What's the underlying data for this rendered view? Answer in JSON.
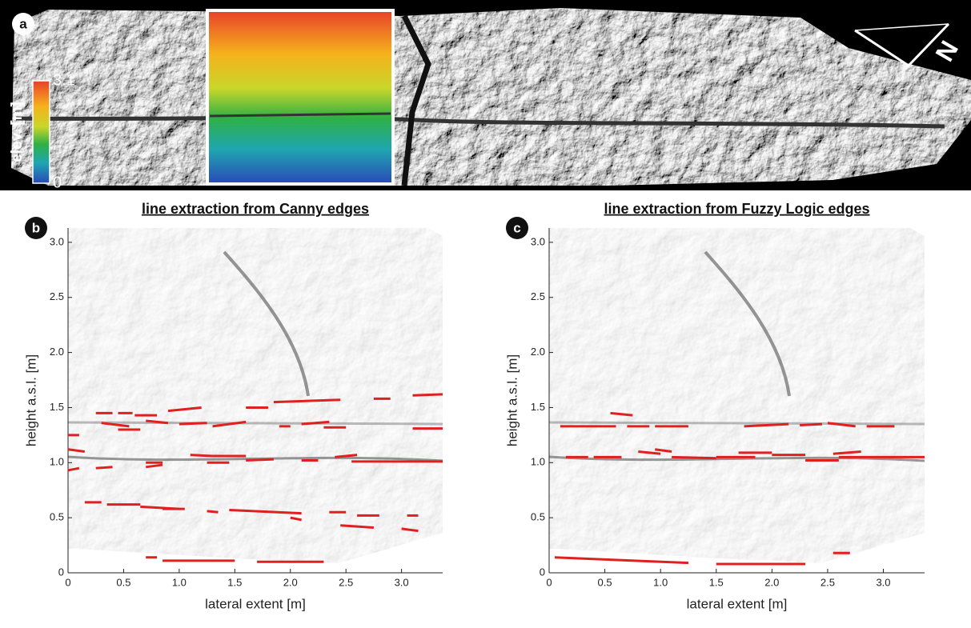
{
  "chart_data": [
    {
      "type": "image",
      "label": "a",
      "cbar_label": "elev. [m]",
      "cbar_ticks": [
        0,
        3.1
      ],
      "north": "N"
    },
    {
      "type": "segments",
      "label": "b",
      "title": "line extraction from Canny edges",
      "xlabel": "lateral extent [m]",
      "ylabel": "height a.s.l. [m]",
      "xlim": [
        0,
        3.37
      ],
      "ylim": [
        0,
        3.13
      ],
      "xticks": [
        0,
        0.5,
        {
          "value": 1,
          "label": "1.0"
        },
        1.5,
        {
          "value": 2,
          "label": "2.0"
        },
        2.5,
        {
          "value": 3,
          "label": "3.0"
        }
      ],
      "yticks": [
        0,
        0.5,
        {
          "value": 1,
          "label": "1.0"
        },
        1.5,
        {
          "value": 2,
          "label": "2.0"
        },
        2.5,
        {
          "value": 3,
          "label": "3.0"
        }
      ],
      "color": "#e02020",
      "segments": [
        [
          0.25,
          1.45,
          0.4,
          1.45
        ],
        [
          0.45,
          1.45,
          0.58,
          1.45
        ],
        [
          0.6,
          1.43,
          0.8,
          1.43
        ],
        [
          0.9,
          1.47,
          1.2,
          1.5
        ],
        [
          0.3,
          1.36,
          0.55,
          1.33
        ],
        [
          0.45,
          1.3,
          0.65,
          1.3
        ],
        [
          0.7,
          1.38,
          0.9,
          1.36
        ],
        [
          1.0,
          1.35,
          1.25,
          1.36
        ],
        [
          1.3,
          1.33,
          1.6,
          1.37
        ],
        [
          1.6,
          1.5,
          1.8,
          1.5
        ],
        [
          1.85,
          1.55,
          2.45,
          1.57
        ],
        [
          1.9,
          1.33,
          2.0,
          1.33
        ],
        [
          2.1,
          1.35,
          2.35,
          1.37
        ],
        [
          2.75,
          1.58,
          2.9,
          1.58
        ],
        [
          3.1,
          1.61,
          3.37,
          1.62
        ],
        [
          2.3,
          1.32,
          2.5,
          1.32
        ],
        [
          3.1,
          1.31,
          3.37,
          1.31
        ],
        [
          0,
          1.25,
          0.1,
          1.25
        ],
        [
          0,
          1.12,
          0.15,
          1.1
        ],
        [
          0,
          0.93,
          0.1,
          0.95
        ],
        [
          0.25,
          0.95,
          0.4,
          0.96
        ],
        [
          0.7,
          1.0,
          0.85,
          1.0
        ],
        [
          0.7,
          0.96,
          0.85,
          0.98
        ],
        [
          1.1,
          1.07,
          1.3,
          1.06
        ],
        [
          1.3,
          1.06,
          1.6,
          1.06
        ],
        [
          1.25,
          1.0,
          1.45,
          1.0
        ],
        [
          1.6,
          1.02,
          1.85,
          1.03
        ],
        [
          2.1,
          1.02,
          2.25,
          1.02
        ],
        [
          2.4,
          1.05,
          2.6,
          1.07
        ],
        [
          2.55,
          1.01,
          3.37,
          1.01
        ],
        [
          0.15,
          0.64,
          0.3,
          0.64
        ],
        [
          0.35,
          0.62,
          0.65,
          0.62
        ],
        [
          0.65,
          0.6,
          1.0,
          0.58
        ],
        [
          0.85,
          0.58,
          1.05,
          0.58
        ],
        [
          1.25,
          0.56,
          1.35,
          0.55
        ],
        [
          1.45,
          0.57,
          2.1,
          0.54
        ],
        [
          2.0,
          0.5,
          2.1,
          0.48
        ],
        [
          2.35,
          0.55,
          2.5,
          0.55
        ],
        [
          2.6,
          0.52,
          2.8,
          0.52
        ],
        [
          2.45,
          0.43,
          2.75,
          0.41
        ],
        [
          3.05,
          0.52,
          3.15,
          0.52
        ],
        [
          3.0,
          0.4,
          3.15,
          0.38
        ],
        [
          0.7,
          0.14,
          0.8,
          0.14
        ],
        [
          0.85,
          0.11,
          1.5,
          0.11
        ],
        [
          1.7,
          0.1,
          2.3,
          0.1
        ]
      ]
    },
    {
      "type": "segments",
      "label": "c",
      "title": "line extraction from Fuzzy Logic edges",
      "xlabel": "lateral extent [m]",
      "ylabel": "height a.s.l. [m]",
      "xlim": [
        0,
        3.37
      ],
      "ylim": [
        0,
        3.13
      ],
      "xticks": [
        0,
        0.5,
        {
          "value": 1,
          "label": "1.0"
        },
        1.5,
        {
          "value": 2,
          "label": "2.0"
        },
        2.5,
        {
          "value": 3,
          "label": "3.0"
        }
      ],
      "yticks": [
        0,
        0.5,
        {
          "value": 1,
          "label": "1.0"
        },
        1.5,
        {
          "value": 2,
          "label": "2.0"
        },
        2.5,
        {
          "value": 3,
          "label": "3.0"
        }
      ],
      "color": "#e02020",
      "segments": [
        [
          0.1,
          1.33,
          0.6,
          1.33
        ],
        [
          0.7,
          1.33,
          0.9,
          1.33
        ],
        [
          0.95,
          1.33,
          1.25,
          1.33
        ],
        [
          0.55,
          1.45,
          0.75,
          1.43
        ],
        [
          1.75,
          1.33,
          2.15,
          1.35
        ],
        [
          2.25,
          1.34,
          2.45,
          1.35
        ],
        [
          2.5,
          1.36,
          2.75,
          1.33
        ],
        [
          2.85,
          1.33,
          3.1,
          1.33
        ],
        [
          0.15,
          1.05,
          0.35,
          1.05
        ],
        [
          0.4,
          1.05,
          0.65,
          1.05
        ],
        [
          0.8,
          1.1,
          1.0,
          1.08
        ],
        [
          0.95,
          1.12,
          1.1,
          1.1
        ],
        [
          1.1,
          1.05,
          1.5,
          1.04
        ],
        [
          1.5,
          1.05,
          1.85,
          1.05
        ],
        [
          1.7,
          1.09,
          2.0,
          1.09
        ],
        [
          2.0,
          1.07,
          2.3,
          1.07
        ],
        [
          2.3,
          1.02,
          2.6,
          1.02
        ],
        [
          2.55,
          1.08,
          2.8,
          1.1
        ],
        [
          2.6,
          1.05,
          3.37,
          1.05
        ],
        [
          0.05,
          0.14,
          1.25,
          0.09
        ],
        [
          1.5,
          0.08,
          2.3,
          0.08
        ],
        [
          2.55,
          0.18,
          2.7,
          0.18
        ]
      ]
    }
  ]
}
